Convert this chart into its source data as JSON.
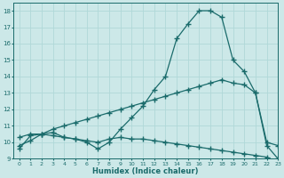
{
  "xlabel": "Humidex (Indice chaleur)",
  "xlim": [
    -0.5,
    23
  ],
  "ylim": [
    9,
    18.5
  ],
  "yticks": [
    9,
    10,
    11,
    12,
    13,
    14,
    15,
    16,
    17,
    18
  ],
  "xticks": [
    0,
    1,
    2,
    3,
    4,
    5,
    6,
    7,
    8,
    9,
    10,
    11,
    12,
    13,
    14,
    15,
    16,
    17,
    18,
    19,
    20,
    21,
    22,
    23
  ],
  "bg_color": "#cce8e8",
  "line_color": "#1a6b6b",
  "grid_color": "#b0d8d8",
  "line1_x": [
    0,
    1,
    2,
    3,
    4,
    5,
    6,
    7,
    8,
    9,
    10,
    11,
    12,
    13,
    14,
    15,
    16,
    17,
    18,
    19,
    20,
    21,
    22,
    23
  ],
  "line1_y": [
    9.6,
    10.4,
    10.5,
    10.4,
    10.3,
    10.2,
    10.0,
    9.6,
    10.0,
    10.8,
    11.5,
    12.2,
    13.2,
    14.0,
    16.3,
    17.2,
    18.0,
    18.0,
    17.6,
    15.0,
    14.3,
    13.0,
    10.0,
    9.8
  ],
  "line2_x": [
    0,
    1,
    2,
    3,
    4,
    5,
    6,
    7,
    8,
    9,
    10,
    11,
    12,
    13,
    14,
    15,
    16,
    17,
    18,
    19,
    20,
    21,
    22,
    23
  ],
  "line2_y": [
    9.8,
    10.1,
    10.5,
    10.8,
    11.0,
    11.2,
    11.4,
    11.6,
    11.8,
    12.0,
    12.2,
    12.4,
    12.6,
    12.8,
    13.0,
    13.2,
    13.4,
    13.6,
    13.8,
    13.6,
    13.5,
    13.0,
    9.8,
    9.0
  ],
  "line3_x": [
    0,
    1,
    2,
    3,
    4,
    5,
    6,
    7,
    8,
    9,
    10,
    11,
    12,
    13,
    14,
    15,
    16,
    17,
    18,
    19,
    20,
    21,
    22,
    23
  ],
  "line3_y": [
    10.3,
    10.5,
    10.5,
    10.6,
    10.3,
    10.2,
    10.1,
    10.0,
    10.2,
    10.3,
    10.2,
    10.2,
    10.1,
    10.0,
    9.9,
    9.8,
    9.7,
    9.6,
    9.5,
    9.4,
    9.3,
    9.2,
    9.1,
    8.8
  ]
}
